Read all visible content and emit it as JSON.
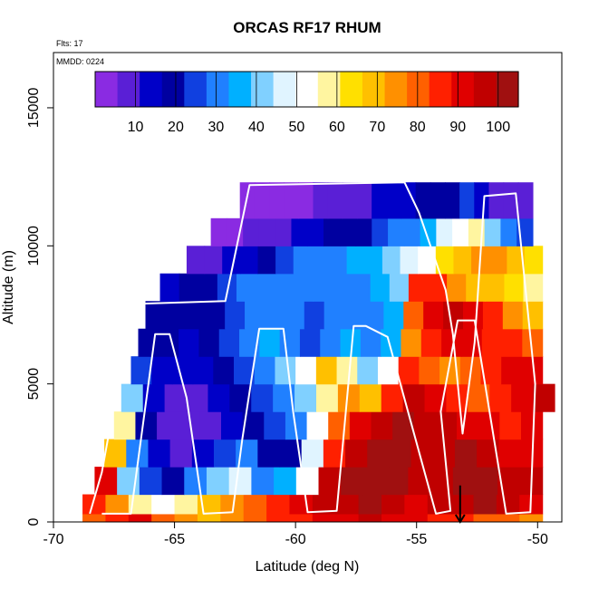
{
  "chart_data": {
    "type": "heatmap",
    "title": "ORCAS RF17 RHUM",
    "info_lines": [
      "Flts: 17",
      "MMDD: 0224"
    ],
    "xlabel": "Latitude (deg N)",
    "ylabel": "Altitude (m)",
    "xlim": [
      -70,
      -49
    ],
    "ylim": [
      0,
      17000
    ],
    "x_ticks": [
      -70,
      -65,
      -60,
      -55,
      -50
    ],
    "x_tick_labels": [
      "-70",
      "-65",
      "-60",
      "-55",
      "-50"
    ],
    "y_ticks": [
      0,
      5000,
      10000,
      15000
    ],
    "y_tick_labels": [
      "0",
      "5000",
      "10000",
      "15000"
    ],
    "colorbar": {
      "range": [
        0,
        105
      ],
      "ticks": [
        10,
        20,
        30,
        40,
        50,
        60,
        70,
        80,
        90,
        100
      ],
      "tick_labels": [
        "10",
        "20",
        "30",
        "40",
        "50",
        "60",
        "70",
        "80",
        "90",
        "100"
      ],
      "colors": [
        "#8a2be2",
        "#5a1fd6",
        "#0000c8",
        "#0000a0",
        "#1040e0",
        "#2080ff",
        "#00b0ff",
        "#80d0ff",
        "#e0f4ff",
        "#ffffff",
        "#fff5a0",
        "#ffe000",
        "#ffc000",
        "#ff9000",
        "#ff6000",
        "#ff2000",
        "#e00000",
        "#c00000",
        "#a01010"
      ]
    },
    "field_description_rows": [
      {
        "alt_band": [
          0,
          300
        ],
        "lat_range": [
          -68.8,
          -49.8
        ],
        "rh": [
          78,
          85,
          90,
          80,
          75,
          70,
          72,
          78,
          85,
          88,
          90,
          92,
          95,
          92,
          90,
          88,
          85,
          80,
          78,
          75
        ]
      },
      {
        "alt_band": [
          300,
          1000
        ],
        "lat_range": [
          -68.8,
          -49.8
        ],
        "rh": [
          85,
          75,
          60,
          55,
          60,
          70,
          75,
          80,
          85,
          90,
          95,
          98,
          100,
          95,
          92,
          95,
          98,
          100,
          95,
          90
        ]
      },
      {
        "alt_band": [
          1000,
          2000
        ],
        "lat_range": [
          -68.3,
          -49.8
        ],
        "rh": [
          92,
          40,
          25,
          20,
          30,
          40,
          45,
          30,
          35,
          55,
          95,
          100,
          100,
          100,
          98,
          95,
          100,
          100,
          98,
          95
        ]
      },
      {
        "alt_band": [
          2000,
          3000
        ],
        "lat_range": [
          -67.9,
          -49.8
        ],
        "rh": [
          70,
          30,
          15,
          10,
          15,
          25,
          30,
          20,
          20,
          45,
          85,
          95,
          100,
          100,
          95,
          98,
          100,
          95,
          92,
          90
        ]
      },
      {
        "alt_band": [
          3000,
          4000
        ],
        "lat_range": [
          -67.5,
          -49.8
        ],
        "rh": [
          60,
          20,
          10,
          8,
          10,
          15,
          20,
          25,
          30,
          50,
          80,
          90,
          95,
          100,
          98,
          95,
          92,
          90,
          88,
          90
        ]
      },
      {
        "alt_band": [
          4000,
          5000
        ],
        "lat_range": [
          -67.2,
          -49.3
        ],
        "rh": [
          40,
          15,
          10,
          10,
          15,
          20,
          25,
          30,
          40,
          60,
          75,
          70,
          85,
          95,
          90,
          85,
          80,
          85,
          90,
          95
        ]
      },
      {
        "alt_band": [
          5000,
          6000
        ],
        "lat_range": [
          -66.8,
          -49.8
        ],
        "rh": [
          25,
          15,
          12,
          15,
          20,
          25,
          30,
          40,
          55,
          70,
          60,
          40,
          50,
          85,
          80,
          75,
          80,
          85,
          90,
          90
        ]
      },
      {
        "alt_band": [
          6000,
          7000
        ],
        "lat_range": [
          -66.5,
          -49.8
        ],
        "rh": [
          20,
          18,
          15,
          20,
          25,
          30,
          35,
          30,
          25,
          30,
          35,
          30,
          35,
          75,
          85,
          90,
          92,
          88,
          85,
          80
        ]
      },
      {
        "alt_band": [
          7000,
          8000
        ],
        "lat_range": [
          -66.2,
          -49.8
        ],
        "rh": [
          22,
          20,
          18,
          22,
          25,
          28,
          30,
          28,
          25,
          28,
          30,
          30,
          35,
          80,
          90,
          95,
          92,
          85,
          75,
          70
        ]
      },
      {
        "alt_band": [
          8000,
          9000
        ],
        "lat_range": [
          -65.6,
          -49.8
        ],
        "rh": [
          15,
          18,
          22,
          25,
          28,
          30,
          32,
          30,
          28,
          30,
          32,
          35,
          40,
          85,
          88,
          75,
          70,
          68,
          65,
          60
        ]
      },
      {
        "alt_band": [
          9000,
          10000
        ],
        "lat_range": [
          -64.5,
          -49.8
        ],
        "rh": [
          8,
          10,
          12,
          15,
          20,
          25,
          28,
          30,
          32,
          35,
          38,
          40,
          45,
          55,
          65,
          70,
          75,
          72,
          68,
          65
        ]
      },
      {
        "alt_band": [
          10000,
          11000
        ],
        "lat_range": [
          -63.5,
          -50.2
        ],
        "rh": [
          5,
          5,
          6,
          8,
          10,
          12,
          15,
          18,
          20,
          22,
          25,
          28,
          30,
          35,
          45,
          55,
          60,
          40,
          30,
          25
        ]
      },
      {
        "alt_band": [
          11000,
          12300
        ],
        "lat_range": [
          -62.3,
          -50.2
        ],
        "rh": [
          5,
          4,
          4,
          5,
          5,
          6,
          6,
          8,
          10,
          12,
          14,
          15,
          18,
          20,
          22,
          25,
          15,
          10,
          8,
          10
        ]
      }
    ],
    "flight_track": [
      [
        -68.5,
        300
      ],
      [
        -68.0,
        1800
      ],
      [
        -66.8,
        7600
      ],
      [
        -66.5,
        7900
      ],
      [
        -62.9,
        8000
      ],
      [
        -61.9,
        12200
      ],
      [
        -55.5,
        12300
      ],
      [
        -54.9,
        11200
      ],
      [
        -53.8,
        8400
      ],
      [
        -53.5,
        6800
      ],
      [
        -53.1,
        3200
      ],
      [
        -52.6,
        6500
      ],
      [
        -52.2,
        11800
      ],
      [
        -50.9,
        11900
      ],
      [
        -50.1,
        5000
      ],
      [
        -50.3,
        350
      ],
      [
        -51.3,
        300
      ],
      [
        -52.6,
        7300
      ],
      [
        -53.3,
        7300
      ],
      [
        -54.0,
        4000
      ],
      [
        -53.6,
        400
      ],
      [
        -54.2,
        300
      ],
      [
        -56.2,
        6700
      ],
      [
        -57.1,
        7100
      ],
      [
        -57.6,
        7100
      ],
      [
        -58.3,
        400
      ],
      [
        -59.5,
        350
      ],
      [
        -60.1,
        4000
      ],
      [
        -60.5,
        7000
      ],
      [
        -61.5,
        7000
      ],
      [
        -62.2,
        3000
      ],
      [
        -62.6,
        350
      ],
      [
        -63.8,
        300
      ],
      [
        -64.5,
        4500
      ],
      [
        -65.2,
        6800
      ],
      [
        -65.8,
        6800
      ],
      [
        -66.8,
        300
      ],
      [
        -68.0,
        300
      ]
    ],
    "marker": {
      "type": "down-arrow",
      "x": -53.2,
      "y": 600
    }
  }
}
